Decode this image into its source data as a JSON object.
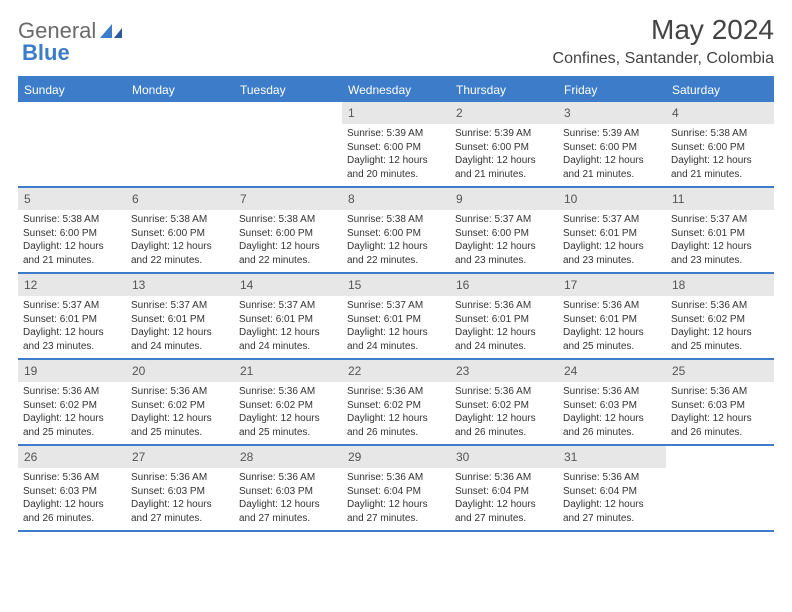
{
  "logo": {
    "text1": "General",
    "text2": "Blue"
  },
  "title": "May 2024",
  "location": "Confines, Santander, Colombia",
  "colors": {
    "accent": "#3d7cc9",
    "weekday_bg": "#3d7cc9",
    "weekday_text": "#ffffff",
    "daynum_bg": "#e7e7e7",
    "text": "#333333"
  },
  "weekdays": [
    "Sunday",
    "Monday",
    "Tuesday",
    "Wednesday",
    "Thursday",
    "Friday",
    "Saturday"
  ],
  "weeks": [
    [
      {
        "n": "",
        "sr": "",
        "ss": "",
        "dl1": "",
        "dl2": "",
        "empty": true
      },
      {
        "n": "",
        "sr": "",
        "ss": "",
        "dl1": "",
        "dl2": "",
        "empty": true
      },
      {
        "n": "",
        "sr": "",
        "ss": "",
        "dl1": "",
        "dl2": "",
        "empty": true
      },
      {
        "n": "1",
        "sr": "Sunrise: 5:39 AM",
        "ss": "Sunset: 6:00 PM",
        "dl1": "Daylight: 12 hours",
        "dl2": "and 20 minutes."
      },
      {
        "n": "2",
        "sr": "Sunrise: 5:39 AM",
        "ss": "Sunset: 6:00 PM",
        "dl1": "Daylight: 12 hours",
        "dl2": "and 21 minutes."
      },
      {
        "n": "3",
        "sr": "Sunrise: 5:39 AM",
        "ss": "Sunset: 6:00 PM",
        "dl1": "Daylight: 12 hours",
        "dl2": "and 21 minutes."
      },
      {
        "n": "4",
        "sr": "Sunrise: 5:38 AM",
        "ss": "Sunset: 6:00 PM",
        "dl1": "Daylight: 12 hours",
        "dl2": "and 21 minutes."
      }
    ],
    [
      {
        "n": "5",
        "sr": "Sunrise: 5:38 AM",
        "ss": "Sunset: 6:00 PM",
        "dl1": "Daylight: 12 hours",
        "dl2": "and 21 minutes."
      },
      {
        "n": "6",
        "sr": "Sunrise: 5:38 AM",
        "ss": "Sunset: 6:00 PM",
        "dl1": "Daylight: 12 hours",
        "dl2": "and 22 minutes."
      },
      {
        "n": "7",
        "sr": "Sunrise: 5:38 AM",
        "ss": "Sunset: 6:00 PM",
        "dl1": "Daylight: 12 hours",
        "dl2": "and 22 minutes."
      },
      {
        "n": "8",
        "sr": "Sunrise: 5:38 AM",
        "ss": "Sunset: 6:00 PM",
        "dl1": "Daylight: 12 hours",
        "dl2": "and 22 minutes."
      },
      {
        "n": "9",
        "sr": "Sunrise: 5:37 AM",
        "ss": "Sunset: 6:00 PM",
        "dl1": "Daylight: 12 hours",
        "dl2": "and 23 minutes."
      },
      {
        "n": "10",
        "sr": "Sunrise: 5:37 AM",
        "ss": "Sunset: 6:01 PM",
        "dl1": "Daylight: 12 hours",
        "dl2": "and 23 minutes."
      },
      {
        "n": "11",
        "sr": "Sunrise: 5:37 AM",
        "ss": "Sunset: 6:01 PM",
        "dl1": "Daylight: 12 hours",
        "dl2": "and 23 minutes."
      }
    ],
    [
      {
        "n": "12",
        "sr": "Sunrise: 5:37 AM",
        "ss": "Sunset: 6:01 PM",
        "dl1": "Daylight: 12 hours",
        "dl2": "and 23 minutes."
      },
      {
        "n": "13",
        "sr": "Sunrise: 5:37 AM",
        "ss": "Sunset: 6:01 PM",
        "dl1": "Daylight: 12 hours",
        "dl2": "and 24 minutes."
      },
      {
        "n": "14",
        "sr": "Sunrise: 5:37 AM",
        "ss": "Sunset: 6:01 PM",
        "dl1": "Daylight: 12 hours",
        "dl2": "and 24 minutes."
      },
      {
        "n": "15",
        "sr": "Sunrise: 5:37 AM",
        "ss": "Sunset: 6:01 PM",
        "dl1": "Daylight: 12 hours",
        "dl2": "and 24 minutes."
      },
      {
        "n": "16",
        "sr": "Sunrise: 5:36 AM",
        "ss": "Sunset: 6:01 PM",
        "dl1": "Daylight: 12 hours",
        "dl2": "and 24 minutes."
      },
      {
        "n": "17",
        "sr": "Sunrise: 5:36 AM",
        "ss": "Sunset: 6:01 PM",
        "dl1": "Daylight: 12 hours",
        "dl2": "and 25 minutes."
      },
      {
        "n": "18",
        "sr": "Sunrise: 5:36 AM",
        "ss": "Sunset: 6:02 PM",
        "dl1": "Daylight: 12 hours",
        "dl2": "and 25 minutes."
      }
    ],
    [
      {
        "n": "19",
        "sr": "Sunrise: 5:36 AM",
        "ss": "Sunset: 6:02 PM",
        "dl1": "Daylight: 12 hours",
        "dl2": "and 25 minutes."
      },
      {
        "n": "20",
        "sr": "Sunrise: 5:36 AM",
        "ss": "Sunset: 6:02 PM",
        "dl1": "Daylight: 12 hours",
        "dl2": "and 25 minutes."
      },
      {
        "n": "21",
        "sr": "Sunrise: 5:36 AM",
        "ss": "Sunset: 6:02 PM",
        "dl1": "Daylight: 12 hours",
        "dl2": "and 25 minutes."
      },
      {
        "n": "22",
        "sr": "Sunrise: 5:36 AM",
        "ss": "Sunset: 6:02 PM",
        "dl1": "Daylight: 12 hours",
        "dl2": "and 26 minutes."
      },
      {
        "n": "23",
        "sr": "Sunrise: 5:36 AM",
        "ss": "Sunset: 6:02 PM",
        "dl1": "Daylight: 12 hours",
        "dl2": "and 26 minutes."
      },
      {
        "n": "24",
        "sr": "Sunrise: 5:36 AM",
        "ss": "Sunset: 6:03 PM",
        "dl1": "Daylight: 12 hours",
        "dl2": "and 26 minutes."
      },
      {
        "n": "25",
        "sr": "Sunrise: 5:36 AM",
        "ss": "Sunset: 6:03 PM",
        "dl1": "Daylight: 12 hours",
        "dl2": "and 26 minutes."
      }
    ],
    [
      {
        "n": "26",
        "sr": "Sunrise: 5:36 AM",
        "ss": "Sunset: 6:03 PM",
        "dl1": "Daylight: 12 hours",
        "dl2": "and 26 minutes."
      },
      {
        "n": "27",
        "sr": "Sunrise: 5:36 AM",
        "ss": "Sunset: 6:03 PM",
        "dl1": "Daylight: 12 hours",
        "dl2": "and 27 minutes."
      },
      {
        "n": "28",
        "sr": "Sunrise: 5:36 AM",
        "ss": "Sunset: 6:03 PM",
        "dl1": "Daylight: 12 hours",
        "dl2": "and 27 minutes."
      },
      {
        "n": "29",
        "sr": "Sunrise: 5:36 AM",
        "ss": "Sunset: 6:04 PM",
        "dl1": "Daylight: 12 hours",
        "dl2": "and 27 minutes."
      },
      {
        "n": "30",
        "sr": "Sunrise: 5:36 AM",
        "ss": "Sunset: 6:04 PM",
        "dl1": "Daylight: 12 hours",
        "dl2": "and 27 minutes."
      },
      {
        "n": "31",
        "sr": "Sunrise: 5:36 AM",
        "ss": "Sunset: 6:04 PM",
        "dl1": "Daylight: 12 hours",
        "dl2": "and 27 minutes."
      },
      {
        "n": "",
        "sr": "",
        "ss": "",
        "dl1": "",
        "dl2": "",
        "empty": true
      }
    ]
  ]
}
